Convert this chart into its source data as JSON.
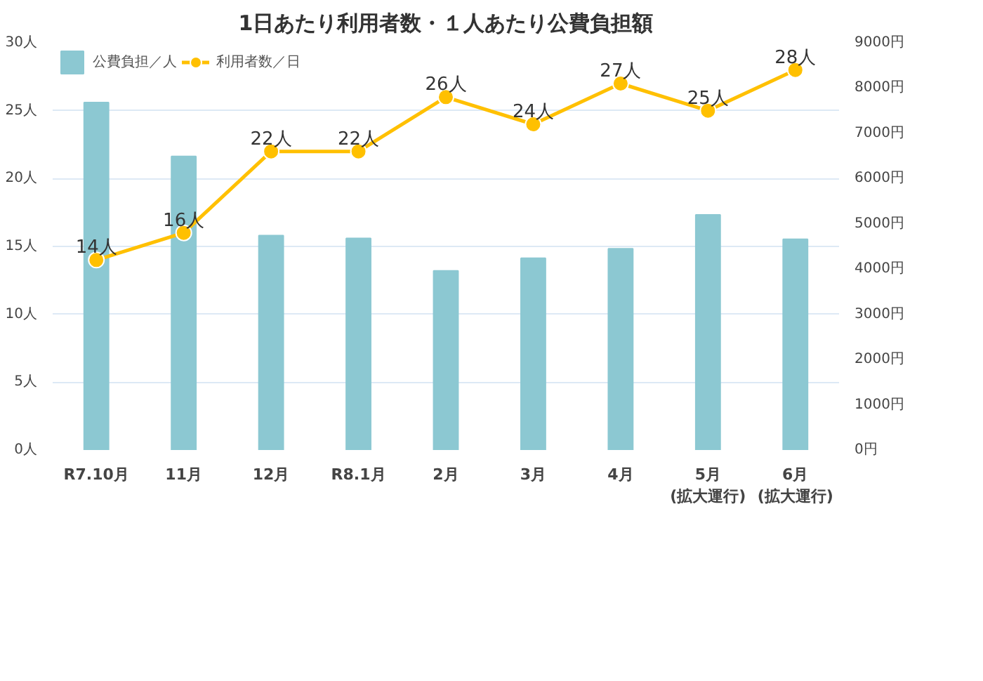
{
  "chart_data": {
    "type": "bar",
    "title": "1日あたり利用者数・１人あたり公費負担額",
    "categories": [
      "R7.10月",
      "11月",
      "12月",
      "R8.1月",
      "2月",
      "3月",
      "4月",
      "5月\n(拡大運行)",
      "6月\n(拡大運行)"
    ],
    "series": [
      {
        "name": "公費負担／人",
        "type": "bar",
        "axis": "y2",
        "color": "#8cc8d2",
        "values": [
          7680,
          6490,
          4740,
          4680,
          3960,
          4240,
          4450,
          5200,
          4660
        ]
      },
      {
        "name": "利用者数／日",
        "type": "line",
        "color": "#ffc000",
        "marker": "circle",
        "values": [
          14,
          16,
          22,
          22,
          26,
          24,
          27,
          25,
          28
        ],
        "value_labels": [
          "14人",
          "16人",
          "22人",
          "22人",
          "26人",
          "24人",
          "27人",
          "25人",
          "28人"
        ]
      }
    ],
    "ylim": [
      0,
      30
    ],
    "yticks": [
      {
        "value": 0,
        "label": "0人"
      },
      {
        "value": 5,
        "label": "5人"
      },
      {
        "value": 10,
        "label": "10人"
      },
      {
        "value": 15,
        "label": "15人"
      },
      {
        "value": 20,
        "label": "20人"
      },
      {
        "value": 25,
        "label": "25人"
      },
      {
        "value": 30,
        "label": "30人"
      }
    ],
    "y2lim": [
      0,
      9000
    ],
    "y2ticks": [
      {
        "value": 0,
        "label": "0円"
      },
      {
        "value": 1000,
        "label": "1000円"
      },
      {
        "value": 2000,
        "label": "2000円"
      },
      {
        "value": 3000,
        "label": "3000円"
      },
      {
        "value": 4000,
        "label": "4000円"
      },
      {
        "value": 5000,
        "label": "5000円"
      },
      {
        "value": 6000,
        "label": "6000円"
      },
      {
        "value": 7000,
        "label": "7000円"
      },
      {
        "value": 8000,
        "label": "8000円"
      },
      {
        "value": 9000,
        "label": "9000円"
      }
    ],
    "grid": "y",
    "legend": "top left"
  }
}
